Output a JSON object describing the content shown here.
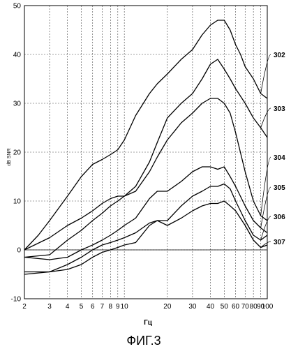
{
  "chart_data": {
    "type": "line",
    "xscale": "log",
    "xlim": [
      2,
      100
    ],
    "ylim": [
      -10,
      50
    ],
    "grid": true,
    "xlabel": "Гц",
    "ylabel": "dB SNR",
    "caption": "ФИГ.3",
    "xticks": [
      "2",
      "3",
      "4",
      "5",
      "6",
      "7",
      "8",
      "9",
      "10",
      "20",
      "30",
      "40",
      "50",
      "60",
      "70",
      "80",
      "90",
      "100"
    ],
    "yticks": [
      "50",
      "40",
      "30",
      "20",
      "10",
      "0",
      "-10"
    ],
    "series": [
      {
        "name": "302",
        "x": [
          2,
          2.5,
          3,
          4,
          5,
          6,
          7,
          8,
          9,
          10,
          12,
          15,
          17,
          20,
          25,
          30,
          35,
          40,
          45,
          50,
          55,
          60,
          65,
          70,
          80,
          90,
          100
        ],
        "y": [
          0,
          3,
          6,
          11,
          15,
          17.5,
          18.5,
          19.5,
          20.5,
          22.5,
          27.5,
          32,
          34,
          36,
          39,
          41,
          44,
          46,
          47,
          47,
          45,
          42,
          40,
          37.5,
          35,
          32,
          31
        ]
      },
      {
        "name": "303",
        "x": [
          2,
          3,
          4,
          5,
          6,
          7,
          8,
          9,
          10,
          12,
          15,
          17,
          20,
          25,
          30,
          35,
          40,
          45,
          50,
          55,
          60,
          70,
          80,
          90,
          100
        ],
        "y": [
          0,
          2.5,
          5,
          6.5,
          8,
          9.5,
          10.5,
          11,
          11,
          13,
          18,
          22,
          27,
          30,
          32,
          35,
          38,
          39,
          37,
          35,
          33,
          30,
          27,
          25,
          23
        ]
      },
      {
        "name": "304",
        "x": [
          2,
          3,
          4,
          5,
          6,
          7,
          8,
          9,
          10,
          12,
          15,
          17,
          20,
          25,
          30,
          35,
          40,
          45,
          50,
          55,
          60,
          70,
          80,
          90,
          100
        ],
        "y": [
          -1.5,
          -1,
          2,
          4,
          6,
          7.5,
          9,
          10,
          11,
          12,
          16,
          19,
          22.5,
          26,
          28,
          30,
          31,
          31,
          30,
          28,
          24,
          16,
          10,
          7,
          6
        ]
      },
      {
        "name": "305",
        "x": [
          2,
          3,
          4,
          5,
          6,
          7,
          8,
          9,
          10,
          12,
          15,
          17,
          20,
          25,
          30,
          35,
          40,
          45,
          50,
          55,
          60,
          70,
          80,
          90,
          100
        ],
        "y": [
          -1.5,
          -2,
          -1.5,
          0,
          1,
          2,
          3,
          4,
          5,
          6.5,
          10.5,
          12,
          12,
          14,
          16,
          17,
          17,
          16.5,
          17,
          15,
          13,
          9,
          6,
          4.5,
          3.5
        ]
      },
      {
        "name": "306",
        "x": [
          2,
          3,
          4,
          5,
          6,
          7,
          8,
          9,
          10,
          12,
          15,
          17,
          20,
          25,
          30,
          35,
          40,
          45,
          50,
          55,
          60,
          70,
          80,
          90,
          100
        ],
        "y": [
          -4.5,
          -4.5,
          -3,
          -1.5,
          0,
          1,
          1.5,
          2,
          2.5,
          3.5,
          5.5,
          6,
          6,
          9,
          11,
          12,
          13,
          13,
          13.5,
          12.5,
          10,
          6,
          3,
          2,
          3
        ]
      },
      {
        "name": "307",
        "x": [
          2,
          3,
          4,
          5,
          6,
          7,
          8,
          9,
          10,
          12,
          15,
          17,
          20,
          25,
          30,
          35,
          40,
          45,
          50,
          55,
          60,
          70,
          80,
          90,
          100
        ],
        "y": [
          -5,
          -4.5,
          -4,
          -3,
          -1.5,
          -0.5,
          0,
          0.5,
          1,
          1.5,
          5,
          6,
          5,
          6.5,
          8,
          9,
          9.5,
          9.5,
          10,
          9,
          8,
          5,
          2,
          0.5,
          1
        ]
      }
    ]
  }
}
